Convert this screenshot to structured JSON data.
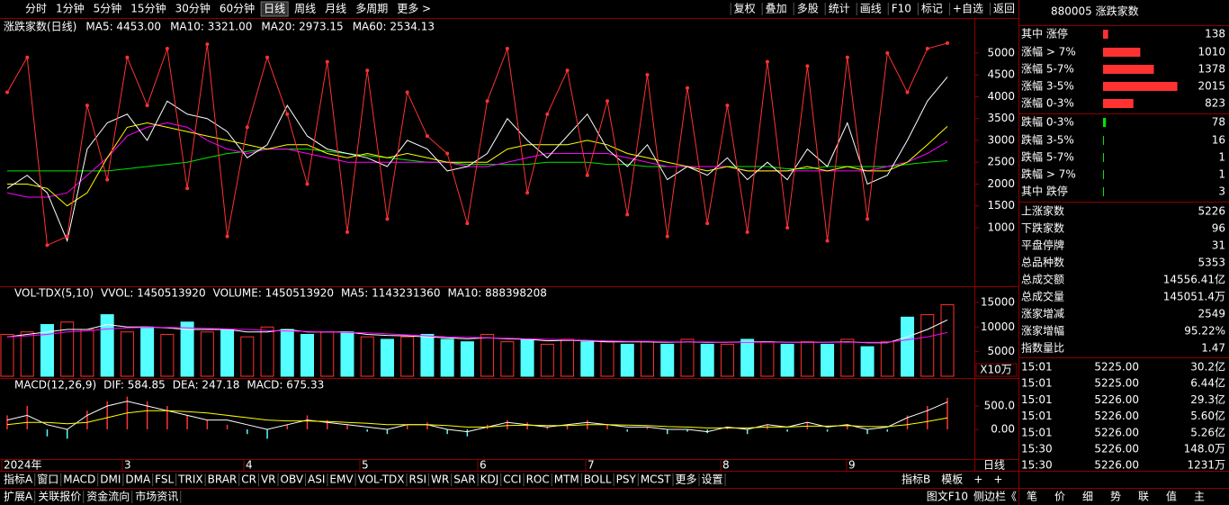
{
  "toolbar": {
    "periods": [
      "分时",
      "1分钟",
      "5分钟",
      "15分钟",
      "30分钟",
      "60分钟",
      "日线",
      "周线",
      "月线",
      "多周期",
      "更多 >"
    ],
    "active_index": 6,
    "tools": [
      "复权",
      "叠加",
      "多股",
      "统计",
      "画线",
      "F10",
      "标记",
      "+自选",
      "返回"
    ]
  },
  "main": {
    "indicator": "涨跌家数(日线)",
    "color": "#ff3232",
    "ylim": [
      -340,
      5760
    ],
    "yticks": [
      1000,
      1500,
      2000,
      2500,
      3000,
      3500,
      4000,
      4500,
      5000
    ],
    "values": [
      4100,
      4900,
      600,
      800,
      3800,
      2100,
      4900,
      3800,
      5100,
      1900,
      5200,
      800,
      3300,
      4900,
      3600,
      2000,
      4800,
      900,
      4600,
      1200,
      4100,
      3100,
      2700,
      1100,
      3900,
      5100,
      1800,
      3600,
      4600,
      2200,
      3900,
      1300,
      4500,
      800,
      4200,
      1100,
      3800,
      900,
      4800,
      1000,
      4700,
      700,
      4900,
      1200,
      5000,
      4100,
      5100,
      5226
    ],
    "ma": [
      {
        "label": "MA5: 4453.00",
        "color": "#ffffff",
        "values": [
          1900,
          2200,
          1800,
          700,
          2800,
          3400,
          3600,
          3000,
          3900,
          3600,
          3500,
          3200,
          2600,
          2900,
          3800,
          3100,
          2800,
          2700,
          2600,
          2400,
          3000,
          2800,
          2300,
          2400,
          2700,
          3500,
          3000,
          2600,
          3100,
          3600,
          2800,
          2400,
          2900,
          2100,
          2400,
          2200,
          2600,
          2100,
          2500,
          2100,
          2800,
          2400,
          3400,
          2000,
          2200,
          3000,
          3900,
          4453
        ]
      },
      {
        "label": "MA10: 3321.00",
        "color": "#ffff00",
        "values": [
          2000,
          2000,
          1900,
          1500,
          1800,
          2600,
          3300,
          3400,
          3300,
          3200,
          3100,
          3000,
          2900,
          2800,
          2900,
          2900,
          2700,
          2600,
          2700,
          2600,
          2700,
          2600,
          2500,
          2500,
          2500,
          2800,
          2900,
          2900,
          2900,
          3000,
          2900,
          2700,
          2600,
          2500,
          2400,
          2300,
          2400,
          2300,
          2300,
          2300,
          2400,
          2300,
          2400,
          2300,
          2300,
          2500,
          2900,
          3321
        ]
      },
      {
        "label": "MA20: 2973.15",
        "color": "#ff00ff",
        "values": [
          1800,
          1700,
          1700,
          1800,
          2200,
          2600,
          3100,
          3300,
          3400,
          3300,
          3000,
          2800,
          2700,
          2800,
          2800,
          2700,
          2600,
          2500,
          2500,
          2500,
          2500,
          2500,
          2500,
          2400,
          2400,
          2500,
          2600,
          2700,
          2700,
          2700,
          2700,
          2600,
          2500,
          2400,
          2400,
          2400,
          2400,
          2300,
          2300,
          2300,
          2300,
          2300,
          2300,
          2300,
          2400,
          2500,
          2700,
          2973
        ]
      },
      {
        "label": "MA60: 2534.13",
        "color": "#00e600",
        "values": [
          2300,
          2300,
          2300,
          2300,
          2300,
          2300,
          2350,
          2400,
          2450,
          2500,
          2600,
          2700,
          2750,
          2800,
          2800,
          2800,
          2750,
          2700,
          2650,
          2600,
          2550,
          2500,
          2500,
          2450,
          2450,
          2450,
          2450,
          2500,
          2500,
          2500,
          2450,
          2450,
          2400,
          2400,
          2400,
          2400,
          2400,
          2400,
          2400,
          2350,
          2350,
          2400,
          2400,
          2400,
          2400,
          2450,
          2500,
          2534
        ]
      }
    ]
  },
  "volume": {
    "indicator": "VOL-TDX(5,10)",
    "labels": [
      {
        "text": "VVOL: 1450513920",
        "color": "#ffffff"
      },
      {
        "text": "VOLUME: 1450513920",
        "color": "#ffff00"
      }
    ],
    "up_color": "#ff3232",
    "down_color": "#54ffff",
    "ylim": [
      0,
      17900
    ],
    "yticks": [
      5000,
      10000,
      15000
    ],
    "unit": "X10万",
    "values": [
      8500,
      9000,
      10500,
      11000,
      9500,
      12500,
      9000,
      10000,
      8500,
      11000,
      9000,
      9500,
      8000,
      10000,
      9500,
      8500,
      9000,
      9000,
      8000,
      7500,
      8000,
      8500,
      7500,
      7000,
      8500,
      7000,
      7500,
      6500,
      7500,
      7000,
      7000,
      6500,
      7000,
      6500,
      7500,
      6500,
      6500,
      7500,
      7000,
      6500,
      7000,
      6500,
      7500,
      6000,
      7000,
      12000,
      12500,
      14505
    ],
    "ma": [
      {
        "label": "MA5: 1143231360",
        "color": "#ffffff",
        "values": [
          8000,
          8500,
          9000,
          9500,
          9500,
          10500,
          10000,
          10000,
          9800,
          9500,
          9500,
          9500,
          9000,
          9000,
          9500,
          9000,
          9000,
          9000,
          8500,
          8300,
          8200,
          8000,
          7800,
          7600,
          7800,
          7600,
          7500,
          7200,
          7300,
          7200,
          7000,
          7000,
          7000,
          6900,
          7000,
          6900,
          6900,
          7000,
          7000,
          6900,
          6900,
          6900,
          7000,
          6800,
          6800,
          8000,
          9500,
          11432
        ]
      },
      {
        "label": "MA10: 888398208",
        "color": "#ff00ff",
        "values": [
          8000,
          8200,
          8500,
          9000,
          9200,
          9600,
          9800,
          9900,
          9900,
          9800,
          9700,
          9600,
          9500,
          9300,
          9200,
          9100,
          9000,
          8900,
          8800,
          8600,
          8400,
          8200,
          8000,
          7900,
          7800,
          7700,
          7600,
          7500,
          7400,
          7300,
          7200,
          7100,
          7100,
          7000,
          7000,
          7000,
          6900,
          6900,
          6900,
          6900,
          6900,
          6900,
          6900,
          6900,
          6900,
          7400,
          8000,
          8884
        ]
      }
    ]
  },
  "macd": {
    "indicator": "MACD(12,26,9)",
    "up_color": "#ff3232",
    "down_color": "#54ffff",
    "ylim": [
      -635,
      1058
    ],
    "yticks": [
      {
        "value": 0,
        "label": "0.00"
      },
      {
        "value": 500,
        "label": "500.0"
      }
    ],
    "bars": [
      300,
      500,
      -150,
      -200,
      400,
      600,
      700,
      600,
      500,
      300,
      200,
      100,
      -100,
      -200,
      100,
      300,
      200,
      100,
      -50,
      -100,
      100,
      150,
      -100,
      -150,
      100,
      200,
      150,
      50,
      100,
      200,
      100,
      -50,
      50,
      -100,
      -50,
      -80,
      50,
      -100,
      100,
      -50,
      150,
      -50,
      100,
      -100,
      -50,
      300,
      500,
      675
    ],
    "lines": [
      {
        "label": "DIF: 584.85",
        "color": "#ffffff",
        "values": [
          200,
          300,
          100,
          0,
          300,
          500,
          600,
          500,
          400,
          300,
          200,
          200,
          100,
          0,
          100,
          200,
          150,
          100,
          50,
          0,
          100,
          100,
          0,
          -50,
          50,
          150,
          100,
          50,
          100,
          150,
          100,
          50,
          50,
          0,
          0,
          -50,
          50,
          0,
          100,
          50,
          150,
          50,
          100,
          0,
          50,
          250,
          400,
          585
        ]
      },
      {
        "label": "DEA: 247.18",
        "color": "#ffff00",
        "values": [
          100,
          150,
          150,
          120,
          150,
          250,
          350,
          400,
          400,
          380,
          350,
          300,
          250,
          200,
          180,
          180,
          170,
          150,
          130,
          100,
          100,
          100,
          80,
          50,
          50,
          80,
          90,
          80,
          80,
          100,
          100,
          90,
          80,
          60,
          50,
          30,
          30,
          30,
          50,
          50,
          70,
          70,
          80,
          60,
          60,
          100,
          170,
          247
        ]
      }
    ],
    "macd_label": {
      "text": "MACD: 675.33",
      "color": "#ff00ff"
    }
  },
  "date_axis": {
    "labels": [
      "2024年",
      "3",
      "4",
      "5",
      "6",
      "7",
      "8",
      "9"
    ],
    "period": "日线"
  },
  "tabs": {
    "left": [
      "指标A",
      "窗口",
      "MACD",
      "DMI",
      "DMA",
      "FSL",
      "TRIX",
      "BRAR",
      "CR",
      "VR",
      "OBV",
      "ASI",
      "EMV",
      "VOL-TDX",
      "RSI",
      "WR",
      "SAR",
      "KDJ",
      "CCI",
      "ROC",
      "MTM",
      "BOLL",
      "PSY",
      "MCST",
      "更多",
      "设置"
    ],
    "right": [
      "指标B",
      "模板",
      "+",
      "+"
    ]
  },
  "status": {
    "left": [
      "扩展A",
      "关联报价",
      "资金流向",
      "市场资讯"
    ],
    "right": [
      "图文F10",
      "侧边栏《"
    ]
  },
  "panel": {
    "title": "880005 涨跌家数",
    "breadth": [
      {
        "label": "其中 涨停",
        "value": 138,
        "color": "#ff3232"
      },
      {
        "label": "涨幅 > 7%",
        "value": 1010,
        "color": "#ff3232"
      },
      {
        "label": "涨幅 5-7%",
        "value": 1378,
        "color": "#ff3232"
      },
      {
        "label": "涨幅 3-5%",
        "value": 2015,
        "color": "#ff3232"
      },
      {
        "label": "涨幅 0-3%",
        "value": 823,
        "color": "#ff3232"
      },
      {
        "label": "跌幅 0-3%",
        "value": 78,
        "color": "#00e600"
      },
      {
        "label": "跌幅 3-5%",
        "value": 16,
        "color": "#00e600"
      },
      {
        "label": "跌幅 5-7%",
        "value": 1,
        "color": "#00e600"
      },
      {
        "label": "跌幅 > 7%",
        "value": 1,
        "color": "#00e600"
      },
      {
        "label": "其中 跌停",
        "value": 3,
        "color": "#00e600"
      }
    ],
    "stats": [
      {
        "label": "上涨家数",
        "value": "5226",
        "color": "#ff3232"
      },
      {
        "label": "下跌家数",
        "value": "96",
        "color": "#00e600"
      },
      {
        "label": "平盘停牌",
        "value": "31",
        "color": "#ffffff"
      },
      {
        "label": "总品种数",
        "value": "5353",
        "color": "#ffffff"
      },
      {
        "label": "总成交额",
        "value": "14556.41亿",
        "color": "#ffff00"
      },
      {
        "label": "总成交量",
        "value": "145051.4万",
        "color": "#ffff00"
      },
      {
        "label": "涨家增减",
        "value": "2549",
        "color": "#ff3232"
      },
      {
        "label": "涨家增幅",
        "value": "95.22%",
        "color": "#ff3232"
      },
      {
        "label": "指数量比",
        "value": "1.47",
        "color": "#ff3232"
      }
    ],
    "ticks": [
      [
        "15:01",
        "5225.00",
        "30.2亿"
      ],
      [
        "15:01",
        "5225.00",
        "6.44亿"
      ],
      [
        "15:01",
        "5226.00",
        "29.3亿"
      ],
      [
        "15:01",
        "5226.00",
        "5.60亿"
      ],
      [
        "15:01",
        "5226.00",
        "5.26亿"
      ],
      [
        "15:30",
        "5226.00",
        "148.0万"
      ],
      [
        "15:30",
        "5226.00",
        "1231万"
      ]
    ],
    "tabs": [
      "笔",
      "价",
      "细",
      "势",
      "联",
      "值",
      "主"
    ]
  }
}
